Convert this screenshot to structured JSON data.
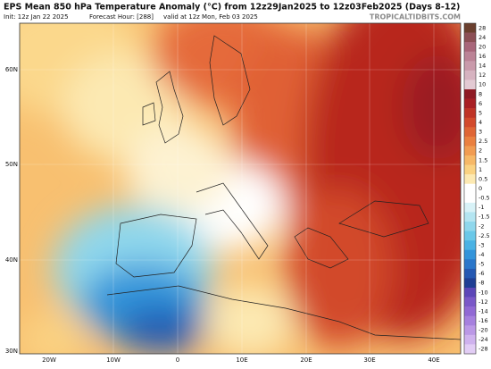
{
  "header": {
    "title": "EPS Mean 850 hPa Temperature Anomaly (°C) from 12z29Jan2025 to 12z03Feb2025 (Days 8-12)",
    "init": "Init: 12z Jan 22 2025",
    "forecast_hour": "Forecast Hour: [288]",
    "valid": "valid at 12z Mon, Feb 03 2025",
    "watermark": "TROPICALTIDBITS.COM"
  },
  "map": {
    "lat_labels": [
      "60N",
      "50N",
      "40N",
      "30N"
    ],
    "lon_labels": [
      "20W",
      "10W",
      "0",
      "10E",
      "20E",
      "30E",
      "40E"
    ]
  },
  "colorbar": {
    "levels": [
      28,
      24,
      20,
      16,
      14,
      12,
      10,
      8,
      6,
      5,
      4,
      3,
      2.5,
      2,
      1.5,
      1,
      0.5,
      0,
      -0.5,
      -1,
      -1.5,
      -2,
      -2.5,
      -3,
      -4,
      -5,
      -6,
      -8,
      -10,
      -12,
      -14,
      -16,
      -20,
      -24,
      -28
    ],
    "colors": [
      "#6b3f2e",
      "#8c4f55",
      "#a8667a",
      "#bb8396",
      "#c99aab",
      "#d6b3c0",
      "#e3cad3",
      "#8e1a24",
      "#a81f24",
      "#bf3326",
      "#d24a2c",
      "#df6535",
      "#ea8040",
      "#f19c52",
      "#f6b867",
      "#fad282",
      "#fce9b2",
      "#ffffff",
      "#ffffff",
      "#d8f2f7",
      "#b4e5f1",
      "#8fd7ec",
      "#6ac8e8",
      "#4ab2e4",
      "#3394da",
      "#2a76ca",
      "#2458b2",
      "#1f3e94",
      "#5c46b8",
      "#7a58c8",
      "#9169d4",
      "#a680de",
      "#bb98e6",
      "#cfb2ee",
      "#e2cdf5"
    ]
  }
}
